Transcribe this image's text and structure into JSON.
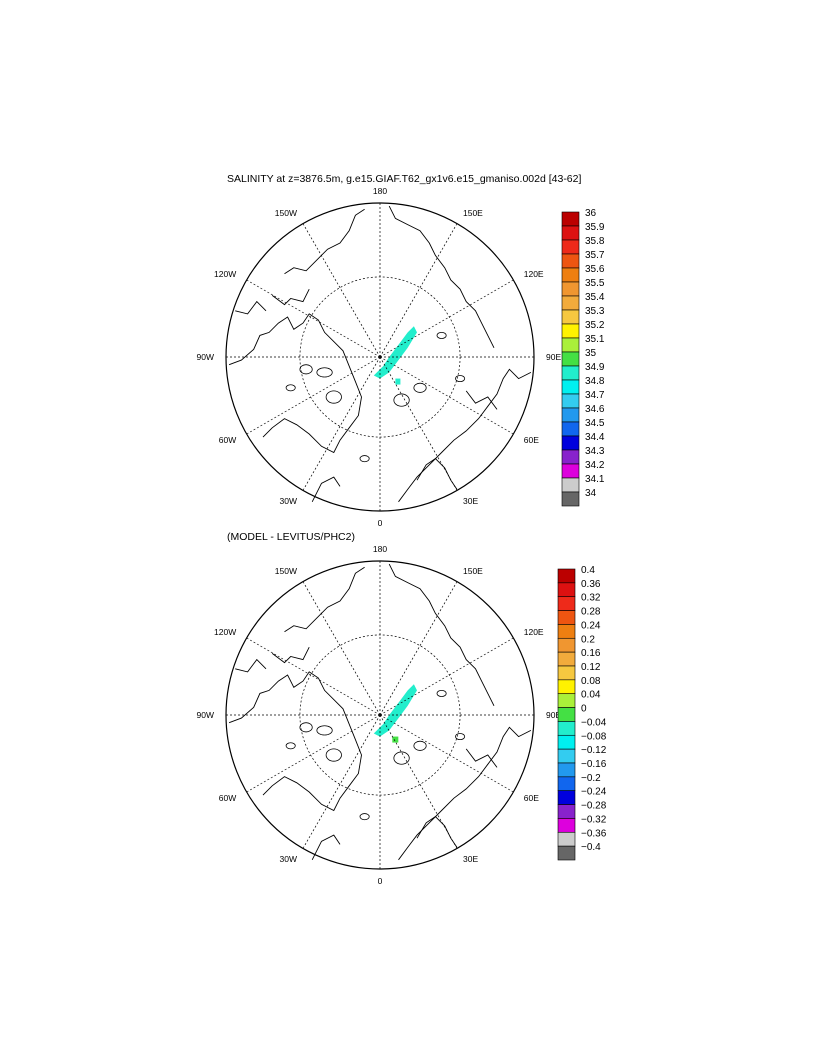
{
  "panels": [
    {
      "title": "SALINITY at z=3876.5m, g.e15.GIAF.T62_gx1v6.e15_gmaniso.002d [43-62]",
      "meridian_labels": [
        "180",
        "150E",
        "120E",
        "90E",
        "60E",
        "30E",
        "0",
        "30W",
        "60W",
        "90W",
        "120W",
        "150W"
      ],
      "colorbar": {
        "labels": [
          "36",
          "35.9",
          "35.8",
          "35.7",
          "35.6",
          "35.5",
          "35.4",
          "35.3",
          "35.2",
          "35.1",
          "35",
          "34.9",
          "34.8",
          "34.7",
          "34.6",
          "34.5",
          "34.4",
          "34.3",
          "34.2",
          "34.1",
          "34"
        ]
      }
    },
    {
      "title": "(MODEL - LEVITUS/PHC2)",
      "meridian_labels": [
        "180",
        "150E",
        "120E",
        "90E",
        "60E",
        "30E",
        "0",
        "30W",
        "60W",
        "90W",
        "120W",
        "150W"
      ],
      "colorbar": {
        "labels": [
          "0.4",
          "0.36",
          "0.32",
          "0.28",
          "0.24",
          "0.2",
          "0.16",
          "0.12",
          "0.08",
          "0.04",
          "0",
          "−0.04",
          "−0.08",
          "−0.12",
          "−0.16",
          "−0.2",
          "−0.24",
          "−0.28",
          "−0.32",
          "−0.36",
          "−0.4"
        ]
      }
    }
  ],
  "colors": {
    "palette_top_to_bottom": [
      "#bb0000",
      "#dd1111",
      "#ee2a1a",
      "#ee5511",
      "#ee7f11",
      "#f09630",
      "#f2ab3c",
      "#f6c840",
      "#fff200",
      "#aaf03a",
      "#44e044",
      "#22eecc",
      "#00f0f0",
      "#33ccf0",
      "#2299ee",
      "#1166ee",
      "#0000dd",
      "#8822cc",
      "#dd00dd",
      "#cccccc",
      "#666666"
    ],
    "field_cyan": "#22eecc",
    "field_green": "#44e044"
  }
}
